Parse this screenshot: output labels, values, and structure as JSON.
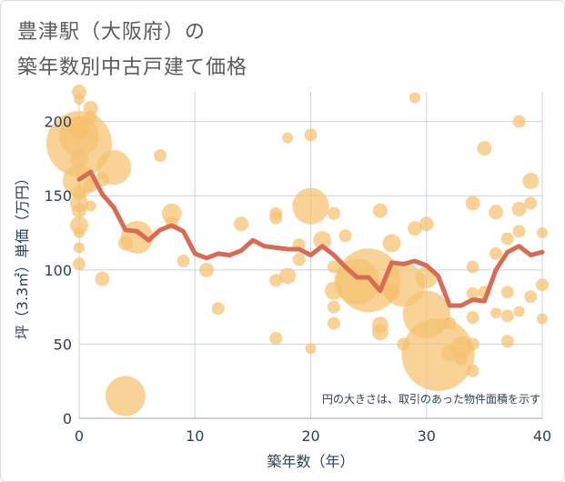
{
  "title_lines": [
    "豊津駅（大阪府）の",
    "築年数別中古戸建て価格"
  ],
  "chart_data": {
    "type": "scatter",
    "xlabel": "築年数（年）",
    "ylabel": "坪（3.3㎡）単価（万円）",
    "xlim": [
      0,
      40
    ],
    "ylim": [
      0,
      220
    ],
    "x_ticks": [
      0,
      10,
      20,
      30,
      40
    ],
    "y_ticks": [
      0,
      50,
      100,
      150,
      200
    ],
    "grid": true,
    "annotation": "円の大きさは、取引のあった物件面積を示す",
    "colors": {
      "bubble": "#f5c06f",
      "line": "#d96b52",
      "grid": "#c8d3e0",
      "axis_text": "#2e4057"
    },
    "series": [
      {
        "kind": "bubbles",
        "points": [
          {
            "x": 0,
            "y": 220,
            "size": 8
          },
          {
            "x": 0,
            "y": 215,
            "size": 6
          },
          {
            "x": 0,
            "y": 196,
            "size": 12
          },
          {
            "x": 0,
            "y": 190,
            "size": 22
          },
          {
            "x": 0,
            "y": 185,
            "size": 36
          },
          {
            "x": 0,
            "y": 175,
            "size": 10
          },
          {
            "x": 0,
            "y": 160,
            "size": 18
          },
          {
            "x": 0,
            "y": 152,
            "size": 8
          },
          {
            "x": 0,
            "y": 145,
            "size": 10
          },
          {
            "x": 0,
            "y": 140,
            "size": 8
          },
          {
            "x": 0,
            "y": 130,
            "size": 10
          },
          {
            "x": 0,
            "y": 125,
            "size": 6
          },
          {
            "x": 0,
            "y": 115,
            "size": 6
          },
          {
            "x": 0,
            "y": 104,
            "size": 7
          },
          {
            "x": 1,
            "y": 209,
            "size": 8
          },
          {
            "x": 1,
            "y": 203,
            "size": 7
          },
          {
            "x": 1,
            "y": 157,
            "size": 8
          },
          {
            "x": 1,
            "y": 143,
            "size": 6
          },
          {
            "x": 2,
            "y": 161,
            "size": 8
          },
          {
            "x": 2,
            "y": 94,
            "size": 8
          },
          {
            "x": 3,
            "y": 169,
            "size": 19
          },
          {
            "x": 4,
            "y": 118,
            "size": 8
          },
          {
            "x": 4,
            "y": 15,
            "size": 22
          },
          {
            "x": 5,
            "y": 122,
            "size": 18
          },
          {
            "x": 7,
            "y": 177,
            "size": 7
          },
          {
            "x": 8,
            "y": 138,
            "size": 11
          },
          {
            "x": 8,
            "y": 132,
            "size": 7
          },
          {
            "x": 9,
            "y": 106,
            "size": 7
          },
          {
            "x": 11,
            "y": 100,
            "size": 8
          },
          {
            "x": 12,
            "y": 74,
            "size": 7
          },
          {
            "x": 14,
            "y": 131,
            "size": 8
          },
          {
            "x": 17,
            "y": 138,
            "size": 7
          },
          {
            "x": 17,
            "y": 135,
            "size": 7
          },
          {
            "x": 17,
            "y": 93,
            "size": 7
          },
          {
            "x": 17,
            "y": 54,
            "size": 7
          },
          {
            "x": 18,
            "y": 189,
            "size": 6
          },
          {
            "x": 18,
            "y": 96,
            "size": 9
          },
          {
            "x": 19,
            "y": 117,
            "size": 7
          },
          {
            "x": 19,
            "y": 107,
            "size": 7
          },
          {
            "x": 20,
            "y": 191,
            "size": 7
          },
          {
            "x": 20,
            "y": 143,
            "size": 20
          },
          {
            "x": 20,
            "y": 47,
            "size": 6
          },
          {
            "x": 21,
            "y": 120,
            "size": 10
          },
          {
            "x": 22,
            "y": 138,
            "size": 7
          },
          {
            "x": 22,
            "y": 102,
            "size": 7
          },
          {
            "x": 22,
            "y": 86,
            "size": 10
          },
          {
            "x": 22,
            "y": 75,
            "size": 7
          },
          {
            "x": 22,
            "y": 64,
            "size": 7
          },
          {
            "x": 23,
            "y": 123,
            "size": 7
          },
          {
            "x": 24,
            "y": 92,
            "size": 25
          },
          {
            "x": 25,
            "y": 93,
            "size": 35
          },
          {
            "x": 26,
            "y": 140,
            "size": 8
          },
          {
            "x": 26,
            "y": 63,
            "size": 9
          },
          {
            "x": 26,
            "y": 58,
            "size": 9
          },
          {
            "x": 27,
            "y": 118,
            "size": 10
          },
          {
            "x": 27,
            "y": 85,
            "size": 9
          },
          {
            "x": 28,
            "y": 90,
            "size": 24
          },
          {
            "x": 28,
            "y": 50,
            "size": 7
          },
          {
            "x": 29,
            "y": 216,
            "size": 6
          },
          {
            "x": 29,
            "y": 128,
            "size": 8
          },
          {
            "x": 30,
            "y": 131,
            "size": 8
          },
          {
            "x": 30,
            "y": 95,
            "size": 12
          },
          {
            "x": 30,
            "y": 70,
            "size": 26
          },
          {
            "x": 31,
            "y": 43,
            "size": 40
          },
          {
            "x": 32,
            "y": 64,
            "size": 7
          },
          {
            "x": 32,
            "y": 44,
            "size": 9
          },
          {
            "x": 33,
            "y": 48,
            "size": 12
          },
          {
            "x": 33,
            "y": 40,
            "size": 7
          },
          {
            "x": 34,
            "y": 145,
            "size": 8
          },
          {
            "x": 34,
            "y": 102,
            "size": 7
          },
          {
            "x": 34,
            "y": 84,
            "size": 7
          },
          {
            "x": 34,
            "y": 68,
            "size": 7
          },
          {
            "x": 34,
            "y": 50,
            "size": 7
          },
          {
            "x": 34,
            "y": 32,
            "size": 7
          },
          {
            "x": 35,
            "y": 182,
            "size": 8
          },
          {
            "x": 35,
            "y": 85,
            "size": 7
          },
          {
            "x": 36,
            "y": 139,
            "size": 8
          },
          {
            "x": 36,
            "y": 111,
            "size": 7
          },
          {
            "x": 36,
            "y": 71,
            "size": 6
          },
          {
            "x": 37,
            "y": 121,
            "size": 7
          },
          {
            "x": 37,
            "y": 85,
            "size": 7
          },
          {
            "x": 37,
            "y": 69,
            "size": 7
          },
          {
            "x": 37,
            "y": 52,
            "size": 7
          },
          {
            "x": 38,
            "y": 200,
            "size": 7
          },
          {
            "x": 38,
            "y": 141,
            "size": 8
          },
          {
            "x": 38,
            "y": 126,
            "size": 7
          },
          {
            "x": 38,
            "y": 72,
            "size": 6
          },
          {
            "x": 39,
            "y": 160,
            "size": 9
          },
          {
            "x": 39,
            "y": 145,
            "size": 7
          },
          {
            "x": 39,
            "y": 82,
            "size": 7
          },
          {
            "x": 40,
            "y": 125,
            "size": 6
          },
          {
            "x": 40,
            "y": 90,
            "size": 7
          },
          {
            "x": 40,
            "y": 67,
            "size": 6
          }
        ]
      },
      {
        "kind": "line",
        "points": [
          {
            "x": 0,
            "y": 161
          },
          {
            "x": 1,
            "y": 166
          },
          {
            "x": 2,
            "y": 151
          },
          {
            "x": 3,
            "y": 142
          },
          {
            "x": 4,
            "y": 127
          },
          {
            "x": 5,
            "y": 126
          },
          {
            "x": 6,
            "y": 120
          },
          {
            "x": 7,
            "y": 127
          },
          {
            "x": 8,
            "y": 130
          },
          {
            "x": 9,
            "y": 126
          },
          {
            "x": 10,
            "y": 111
          },
          {
            "x": 11,
            "y": 108
          },
          {
            "x": 12,
            "y": 111
          },
          {
            "x": 13,
            "y": 110
          },
          {
            "x": 14,
            "y": 113
          },
          {
            "x": 15,
            "y": 120
          },
          {
            "x": 16,
            "y": 116
          },
          {
            "x": 17,
            "y": 115
          },
          {
            "x": 18,
            "y": 114
          },
          {
            "x": 19,
            "y": 114
          },
          {
            "x": 20,
            "y": 110
          },
          {
            "x": 21,
            "y": 116
          },
          {
            "x": 22,
            "y": 110
          },
          {
            "x": 23,
            "y": 102
          },
          {
            "x": 24,
            "y": 95
          },
          {
            "x": 25,
            "y": 95
          },
          {
            "x": 26,
            "y": 86
          },
          {
            "x": 27,
            "y": 105
          },
          {
            "x": 28,
            "y": 104
          },
          {
            "x": 29,
            "y": 106
          },
          {
            "x": 30,
            "y": 103
          },
          {
            "x": 31,
            "y": 96
          },
          {
            "x": 32,
            "y": 76
          },
          {
            "x": 33,
            "y": 76
          },
          {
            "x": 34,
            "y": 80
          },
          {
            "x": 35,
            "y": 79
          },
          {
            "x": 36,
            "y": 100
          },
          {
            "x": 37,
            "y": 112
          },
          {
            "x": 38,
            "y": 116
          },
          {
            "x": 39,
            "y": 110
          },
          {
            "x": 40,
            "y": 112
          }
        ]
      }
    ]
  }
}
